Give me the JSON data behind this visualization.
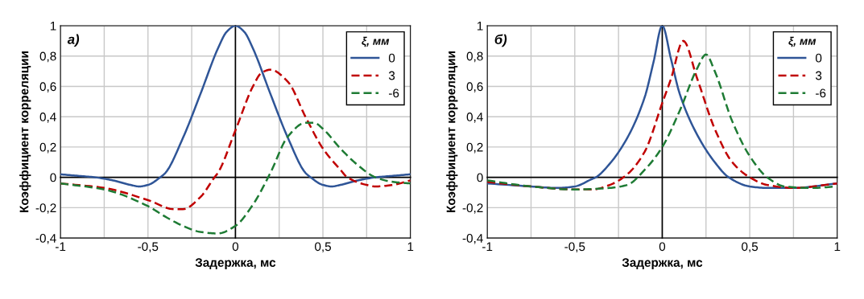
{
  "chart_data": [
    {
      "type": "line",
      "xlabel": "Задержка, мс",
      "ylabel": "Коэффициент корреляции",
      "annotations": [
        "а)"
      ],
      "legend_title": "ξ, мм",
      "legend": "top right",
      "grid": true,
      "marker": "none",
      "xlim": [
        -1,
        1
      ],
      "ylim": [
        -0.4,
        1
      ],
      "xticks": [
        {
          "value": -1,
          "label": "-1"
        },
        {
          "value": -0.75,
          "label": null
        },
        {
          "value": -0.5,
          "label": "-0,5"
        },
        {
          "value": -0.25,
          "label": null
        },
        {
          "value": 0,
          "label": "0"
        },
        {
          "value": 0.25,
          "label": null
        },
        {
          "value": 0.5,
          "label": "0,5"
        },
        {
          "value": 0.75,
          "label": null
        },
        {
          "value": 1,
          "label": "1"
        }
      ],
      "yticks": [
        {
          "value": -0.4,
          "label": "-0,4"
        },
        {
          "value": -0.2,
          "label": "-0,2"
        },
        {
          "value": 0,
          "label": "0"
        },
        {
          "value": 0.2,
          "label": "0,2"
        },
        {
          "value": 0.4,
          "label": "0,4"
        },
        {
          "value": 0.6,
          "label": "0,6"
        },
        {
          "value": 0.8,
          "label": "0,8"
        },
        {
          "value": 1,
          "label": "1"
        }
      ],
      "series": [
        {
          "name": "0",
          "color": "#2f5597",
          "line_style": "solid",
          "x": [
            -1,
            -0.9,
            -0.8,
            -0.7,
            -0.6,
            -0.55,
            -0.5,
            -0.43,
            -0.4,
            -0.3,
            -0.2,
            -0.1,
            -0.05,
            0,
            0.05,
            0.1,
            0.2,
            0.3,
            0.4,
            0.43,
            0.5,
            0.55,
            0.6,
            0.7,
            0.8,
            0.9,
            1
          ],
          "values": [
            0.02,
            0.01,
            0,
            -0.02,
            -0.05,
            -0.06,
            -0.05,
            0,
            0.03,
            0.26,
            0.55,
            0.85,
            0.96,
            1,
            0.96,
            0.85,
            0.55,
            0.26,
            0.03,
            0,
            -0.05,
            -0.06,
            -0.05,
            -0.02,
            0,
            0.01,
            0.02
          ]
        },
        {
          "name": "3",
          "color": "#c00000",
          "line_style": "dashed",
          "x": [
            -1,
            -0.75,
            -0.5,
            -0.35,
            -0.3,
            -0.2,
            -0.12,
            -0.1,
            0,
            0.1,
            0.15,
            0.2,
            0.3,
            0.4,
            0.5,
            0.6,
            0.64,
            0.75,
            0.8,
            0.9,
            1
          ],
          "values": [
            -0.04,
            -0.07,
            -0.15,
            -0.21,
            -0.21,
            -0.13,
            0,
            0.03,
            0.31,
            0.6,
            0.69,
            0.71,
            0.63,
            0.4,
            0.19,
            0.05,
            0,
            -0.05,
            -0.06,
            -0.05,
            -0.02
          ]
        },
        {
          "name": "-6",
          "color": "#1e7b34",
          "line_style": "dashed",
          "x": [
            -1,
            -0.75,
            -0.5,
            -0.4,
            -0.3,
            -0.2,
            -0.1,
            0,
            0.1,
            0.2,
            0.3,
            0.4,
            0.45,
            0.5,
            0.6,
            0.7,
            0.8,
            0.9,
            1
          ],
          "values": [
            -0.04,
            -0.08,
            -0.19,
            -0.26,
            -0.32,
            -0.36,
            -0.37,
            -0.32,
            -0.18,
            0.03,
            0.27,
            0.36,
            0.36,
            0.32,
            0.19,
            0.08,
            0,
            -0.03,
            -0.04
          ]
        }
      ]
    },
    {
      "type": "line",
      "xlabel": "Задержка, мс",
      "ylabel": "Коэффициент корреляции",
      "annotations": [
        "б)"
      ],
      "legend_title": "ξ, мм",
      "legend": "top right",
      "grid": true,
      "marker": "none",
      "xlim": [
        -1,
        1
      ],
      "ylim": [
        -0.4,
        1
      ],
      "xticks": [
        {
          "value": -1,
          "label": "-1"
        },
        {
          "value": -0.75,
          "label": null
        },
        {
          "value": -0.5,
          "label": "-0,5"
        },
        {
          "value": -0.25,
          "label": null
        },
        {
          "value": 0,
          "label": "0"
        },
        {
          "value": 0.25,
          "label": null
        },
        {
          "value": 0.5,
          "label": "0,5"
        },
        {
          "value": 0.75,
          "label": null
        },
        {
          "value": 1,
          "label": "1"
        }
      ],
      "yticks": [
        {
          "value": -0.4,
          "label": "-0,4"
        },
        {
          "value": -0.2,
          "label": "-0,2"
        },
        {
          "value": 0,
          "label": "0"
        },
        {
          "value": 0.2,
          "label": "0,2"
        },
        {
          "value": 0.4,
          "label": "0,4"
        },
        {
          "value": 0.6,
          "label": "0,6"
        },
        {
          "value": 0.8,
          "label": "0,8"
        },
        {
          "value": 1,
          "label": "1"
        }
      ],
      "series": [
        {
          "name": "0",
          "color": "#2f5597",
          "line_style": "solid",
          "x": [
            -1,
            -0.75,
            -0.6,
            -0.5,
            -0.4,
            -0.38,
            -0.3,
            -0.2,
            -0.1,
            -0.05,
            0,
            0.05,
            0.1,
            0.2,
            0.3,
            0.38,
            0.5,
            0.6,
            0.75,
            1
          ],
          "values": [
            -0.04,
            -0.06,
            -0.07,
            -0.06,
            -0.01,
            0,
            0.09,
            0.26,
            0.53,
            0.76,
            1,
            0.78,
            0.55,
            0.28,
            0.1,
            0,
            -0.06,
            -0.07,
            -0.07,
            -0.04
          ]
        },
        {
          "name": "3",
          "color": "#c00000",
          "line_style": "dashed",
          "x": [
            -1,
            -0.75,
            -0.5,
            -0.4,
            -0.3,
            -0.2,
            -0.1,
            0,
            0.05,
            0.12,
            0.2,
            0.3,
            0.4,
            0.5,
            0.6,
            0.75,
            1
          ],
          "values": [
            -0.03,
            -0.06,
            -0.08,
            -0.08,
            -0.05,
            0.02,
            0.17,
            0.49,
            0.65,
            0.9,
            0.65,
            0.32,
            0.1,
            0,
            -0.05,
            -0.07,
            -0.04
          ]
        },
        {
          "name": "-6",
          "color": "#1e7b34",
          "line_style": "dashed",
          "x": [
            -1,
            -0.75,
            -0.5,
            -0.3,
            -0.2,
            -0.1,
            0,
            0.1,
            0.2,
            0.25,
            0.3,
            0.4,
            0.5,
            0.6,
            0.7,
            0.85,
            1
          ],
          "values": [
            -0.02,
            -0.06,
            -0.08,
            -0.07,
            -0.05,
            0.05,
            0.2,
            0.44,
            0.72,
            0.81,
            0.7,
            0.37,
            0.14,
            0,
            -0.06,
            -0.07,
            -0.06
          ]
        }
      ]
    }
  ]
}
